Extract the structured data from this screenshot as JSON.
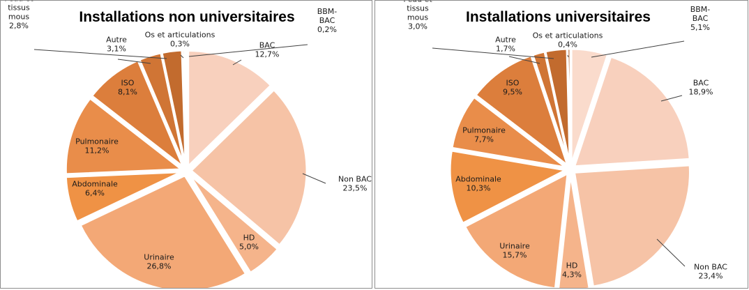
{
  "chart_data": [
    {
      "type": "pie",
      "title": "Installations non universitaires",
      "slices": [
        {
          "name": "BAC",
          "label_lines": [
            "BAC"
          ],
          "value": 12.7,
          "value_text": "12,7%",
          "color": "#f8d0bd"
        },
        {
          "name": "Non BAC",
          "label_lines": [
            "Non BAC"
          ],
          "value": 23.5,
          "value_text": "23,5%",
          "color": "#f6c3a6"
        },
        {
          "name": "HD",
          "label_lines": [
            "HD"
          ],
          "value": 5.0,
          "value_text": "5,0%",
          "color": "#f5b48b"
        },
        {
          "name": "Urinaire",
          "label_lines": [
            "Urinaire"
          ],
          "value": 26.8,
          "value_text": "26,8%",
          "color": "#f3a876"
        },
        {
          "name": "Abdominale",
          "label_lines": [
            "Abdominale"
          ],
          "value": 6.4,
          "value_text": "6,4%",
          "color": "#ef9245"
        },
        {
          "name": "Pulmonaire",
          "label_lines": [
            "Pulmonaire"
          ],
          "value": 11.2,
          "value_text": "11,2%",
          "color": "#e98d4a"
        },
        {
          "name": "ISO",
          "label_lines": [
            "ISO"
          ],
          "value": 8.1,
          "value_text": "8,1%",
          "color": "#dc7e3c"
        },
        {
          "name": "Autre",
          "label_lines": [
            "Autre"
          ],
          "value": 3.1,
          "value_text": "3,1%",
          "color": "#d07535"
        },
        {
          "name": "Peau et tissus mous",
          "label_lines": [
            "Peau et",
            "tissus",
            "mous"
          ],
          "value": 2.8,
          "value_text": "2,8%",
          "color": "#c26b2e"
        },
        {
          "name": "Os et articulations",
          "label_lines": [
            "Os et articulations"
          ],
          "value": 0.3,
          "value_text": "0,3%",
          "color": "#b8652a"
        },
        {
          "name": "BBM-BAC",
          "label_lines": [
            "BBM-",
            "BAC"
          ],
          "value": 0.2,
          "value_text": "0,2%",
          "color": "#ad5f28"
        }
      ]
    },
    {
      "type": "pie",
      "title": "Installations universitaires",
      "slices": [
        {
          "name": "BBM-BAC",
          "label_lines": [
            "BBM-",
            "BAC"
          ],
          "value": 5.1,
          "value_text": "5,1%",
          "color": "#fadbcc"
        },
        {
          "name": "BAC",
          "label_lines": [
            "BAC"
          ],
          "value": 18.9,
          "value_text": "18,9%",
          "color": "#f8d0bd"
        },
        {
          "name": "Non BAC",
          "label_lines": [
            "Non BAC"
          ],
          "value": 23.4,
          "value_text": "23,4%",
          "color": "#f6c3a6"
        },
        {
          "name": "HD",
          "label_lines": [
            "HD"
          ],
          "value": 4.3,
          "value_text": "4,3%",
          "color": "#f5b48b"
        },
        {
          "name": "Urinaire",
          "label_lines": [
            "Urinaire"
          ],
          "value": 15.7,
          "value_text": "15,7%",
          "color": "#f3a876"
        },
        {
          "name": "Abdominale",
          "label_lines": [
            "Abdominale"
          ],
          "value": 10.3,
          "value_text": "10,3%",
          "color": "#ef9245"
        },
        {
          "name": "Pulmonaire",
          "label_lines": [
            "Pulmonaire"
          ],
          "value": 7.7,
          "value_text": "7,7%",
          "color": "#e98d4a"
        },
        {
          "name": "ISO",
          "label_lines": [
            "ISO"
          ],
          "value": 9.5,
          "value_text": "9,5%",
          "color": "#dc7e3c"
        },
        {
          "name": "Autre",
          "label_lines": [
            "Autre"
          ],
          "value": 1.7,
          "value_text": "1,7%",
          "color": "#d07535"
        },
        {
          "name": "Peau et tissus mous",
          "label_lines": [
            "Peau et",
            "tissus",
            "mous"
          ],
          "value": 3.0,
          "value_text": "3,0%",
          "color": "#c26b2e"
        },
        {
          "name": "Os et articulations",
          "label_lines": [
            "Os et articulations"
          ],
          "value": 0.4,
          "value_text": "0,4%",
          "color": "#b8652a"
        }
      ]
    }
  ]
}
